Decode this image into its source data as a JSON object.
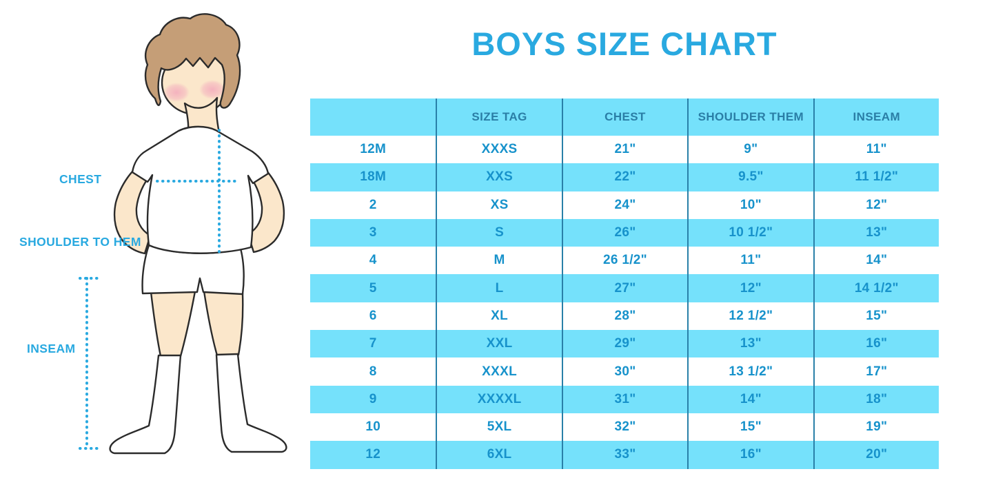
{
  "title": "BOYS SIZE CHART",
  "figure": {
    "labels": {
      "chest": "CHEST",
      "shoulder_to_hem": "SHOULDER TO HEM",
      "inseam": "INSEAM"
    }
  },
  "table": {
    "columns": [
      "",
      "SIZE TAG",
      "CHEST",
      "SHOULDER THEM",
      "INSEAM"
    ],
    "rows": [
      [
        "12M",
        "XXXS",
        "21\"",
        "9\"",
        "11\""
      ],
      [
        "18M",
        "XXS",
        "22\"",
        "9.5\"",
        "11 1/2\""
      ],
      [
        "2",
        "XS",
        "24\"",
        "10\"",
        "12\""
      ],
      [
        "3",
        "S",
        "26\"",
        "10 1/2\"",
        "13\""
      ],
      [
        "4",
        "M",
        "26 1/2\"",
        "11\"",
        "14\""
      ],
      [
        "5",
        "L",
        "27\"",
        "12\"",
        "14 1/2\""
      ],
      [
        "6",
        "XL",
        "28\"",
        "12 1/2\"",
        "15\""
      ],
      [
        "7",
        "XXL",
        "29\"",
        "13\"",
        "16\""
      ],
      [
        "8",
        "XXXL",
        "30\"",
        "13 1/2\"",
        "17\""
      ],
      [
        "9",
        "XXXXL",
        "31\"",
        "14\"",
        "18\""
      ],
      [
        "10",
        "5XL",
        "32\"",
        "15\"",
        "19\""
      ],
      [
        "12",
        "6XL",
        "33\"",
        "16\"",
        "20\""
      ]
    ]
  },
  "colors": {
    "accent_blue": "#29A9E0",
    "row_alt_blue": "#75E1FB",
    "header_text": "#2A7EA6",
    "cell_text": "#1792CB",
    "divider": "#2980A8",
    "skin": "#FBE7CB",
    "hair": "#C59E77",
    "cheek": "#F3A9BC",
    "outline": "#2b2b2b"
  },
  "chart_data": {
    "type": "table",
    "title": "BOYS SIZE CHART",
    "columns": [
      "",
      "SIZE TAG",
      "CHEST",
      "SHOULDER THEM",
      "INSEAM"
    ],
    "rows": [
      [
        "12M",
        "XXXS",
        "21\"",
        "9\"",
        "11\""
      ],
      [
        "18M",
        "XXS",
        "22\"",
        "9.5\"",
        "11 1/2\""
      ],
      [
        "2",
        "XS",
        "24\"",
        "10\"",
        "12\""
      ],
      [
        "3",
        "S",
        "26\"",
        "10 1/2\"",
        "13\""
      ],
      [
        "4",
        "M",
        "26 1/2\"",
        "11\"",
        "14\""
      ],
      [
        "5",
        "L",
        "27\"",
        "12\"",
        "14 1/2\""
      ],
      [
        "6",
        "XL",
        "28\"",
        "12 1/2\"",
        "15\""
      ],
      [
        "7",
        "XXL",
        "29\"",
        "13\"",
        "16\""
      ],
      [
        "8",
        "XXXL",
        "30\"",
        "13 1/2\"",
        "17\""
      ],
      [
        "9",
        "XXXXL",
        "31\"",
        "14\"",
        "18\""
      ],
      [
        "10",
        "5XL",
        "32\"",
        "15\"",
        "19\""
      ],
      [
        "12",
        "6XL",
        "33\"",
        "16\"",
        "20\""
      ]
    ],
    "annotations": [
      "CHEST",
      "SHOULDER TO HEM",
      "INSEAM"
    ],
    "layout": "measurement diagram of boy on left, size table on right, alternating row stripes"
  }
}
